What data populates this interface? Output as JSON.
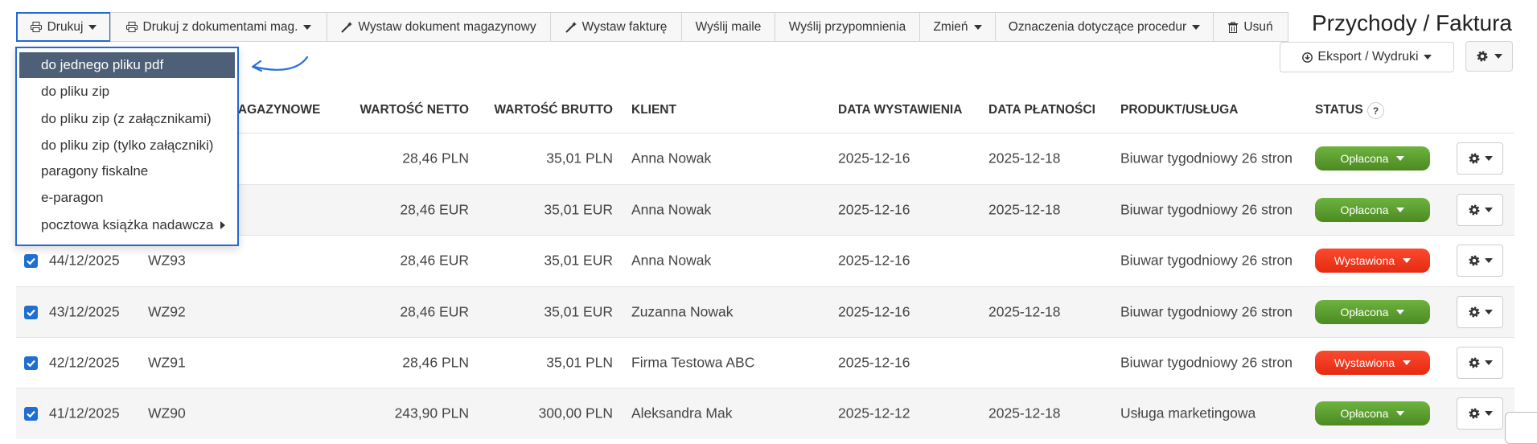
{
  "toolbar": {
    "buttons": [
      "Drukuj",
      "Drukuj z dokumentami mag.",
      "Wystaw dokument magazynowy",
      "Wystaw fakturę",
      "Wyślij maile",
      "Wyślij przypomnienia",
      "Zmień",
      "Oznaczenia dotyczące procedur",
      "Usuń"
    ]
  },
  "title": "Przychody / Faktura",
  "export_button": "Eksport / Wydruki",
  "print_menu": {
    "items": [
      "do jednego pliku pdf",
      "do pliku zip",
      "do pliku zip (z załącznikami)",
      "do pliku zip (tylko załączniki)",
      "paragony fiskalne",
      "e-paragon",
      "pocztowa książka nadawcza"
    ]
  },
  "table": {
    "headers": [
      "MAGAZYNOWE",
      "WARTOŚĆ NETTO",
      "WARTOŚĆ BRUTTO",
      "KLIENT",
      "DATA WYSTAWIENIA",
      "DATA PŁATNOŚCI",
      "PRODUKT/USŁUGA",
      "STATUS"
    ],
    "status_help": "?",
    "rows": [
      {
        "net": "28,46 PLN",
        "gross": "35,01 PLN",
        "client": "Anna Nowak",
        "issue_date": "2025-12-16",
        "payment_date": "2025-12-18",
        "product": "Biuwar tygodniowy 26 stron",
        "status": "Opłacona"
      },
      {
        "net": "28,46 EUR",
        "gross": "35,01 EUR",
        "client": "Anna Nowak",
        "issue_date": "2025-12-16",
        "payment_date": "2025-12-18",
        "product": "Biuwar tygodniowy 26 stron",
        "status": "Opłacona"
      },
      {
        "number": "44/12/2025",
        "document": "WZ93",
        "net": "28,46 EUR",
        "gross": "35,01 EUR",
        "client": "Anna Nowak",
        "issue_date": "2025-12-16",
        "product": "Biuwar tygodniowy 26 stron",
        "status": "Wystawiona"
      },
      {
        "number": "43/12/2025",
        "document": "WZ92",
        "net": "28,46 EUR",
        "gross": "35,01 EUR",
        "client": "Zuzanna Nowak",
        "issue_date": "2025-12-16",
        "payment_date": "2025-12-18",
        "product": "Biuwar tygodniowy 26 stron",
        "status": "Opłacona"
      },
      {
        "number": "42/12/2025",
        "document": "WZ91",
        "net": "28,46 PLN",
        "gross": "35,01 PLN",
        "client": "Firma Testowa ABC",
        "issue_date": "2025-12-16",
        "product": "Biuwar tygodniowy 26 stron",
        "status": "Wystawiona"
      },
      {
        "number": "41/12/2025",
        "document": "WZ90",
        "net": "243,90 PLN",
        "gross": "300,00 PLN",
        "client": "Aleksandra Mak",
        "issue_date": "2025-12-12",
        "payment_date": "2025-12-18",
        "product": "Usługa marketingowa",
        "status": "Opłacona"
      }
    ]
  }
}
